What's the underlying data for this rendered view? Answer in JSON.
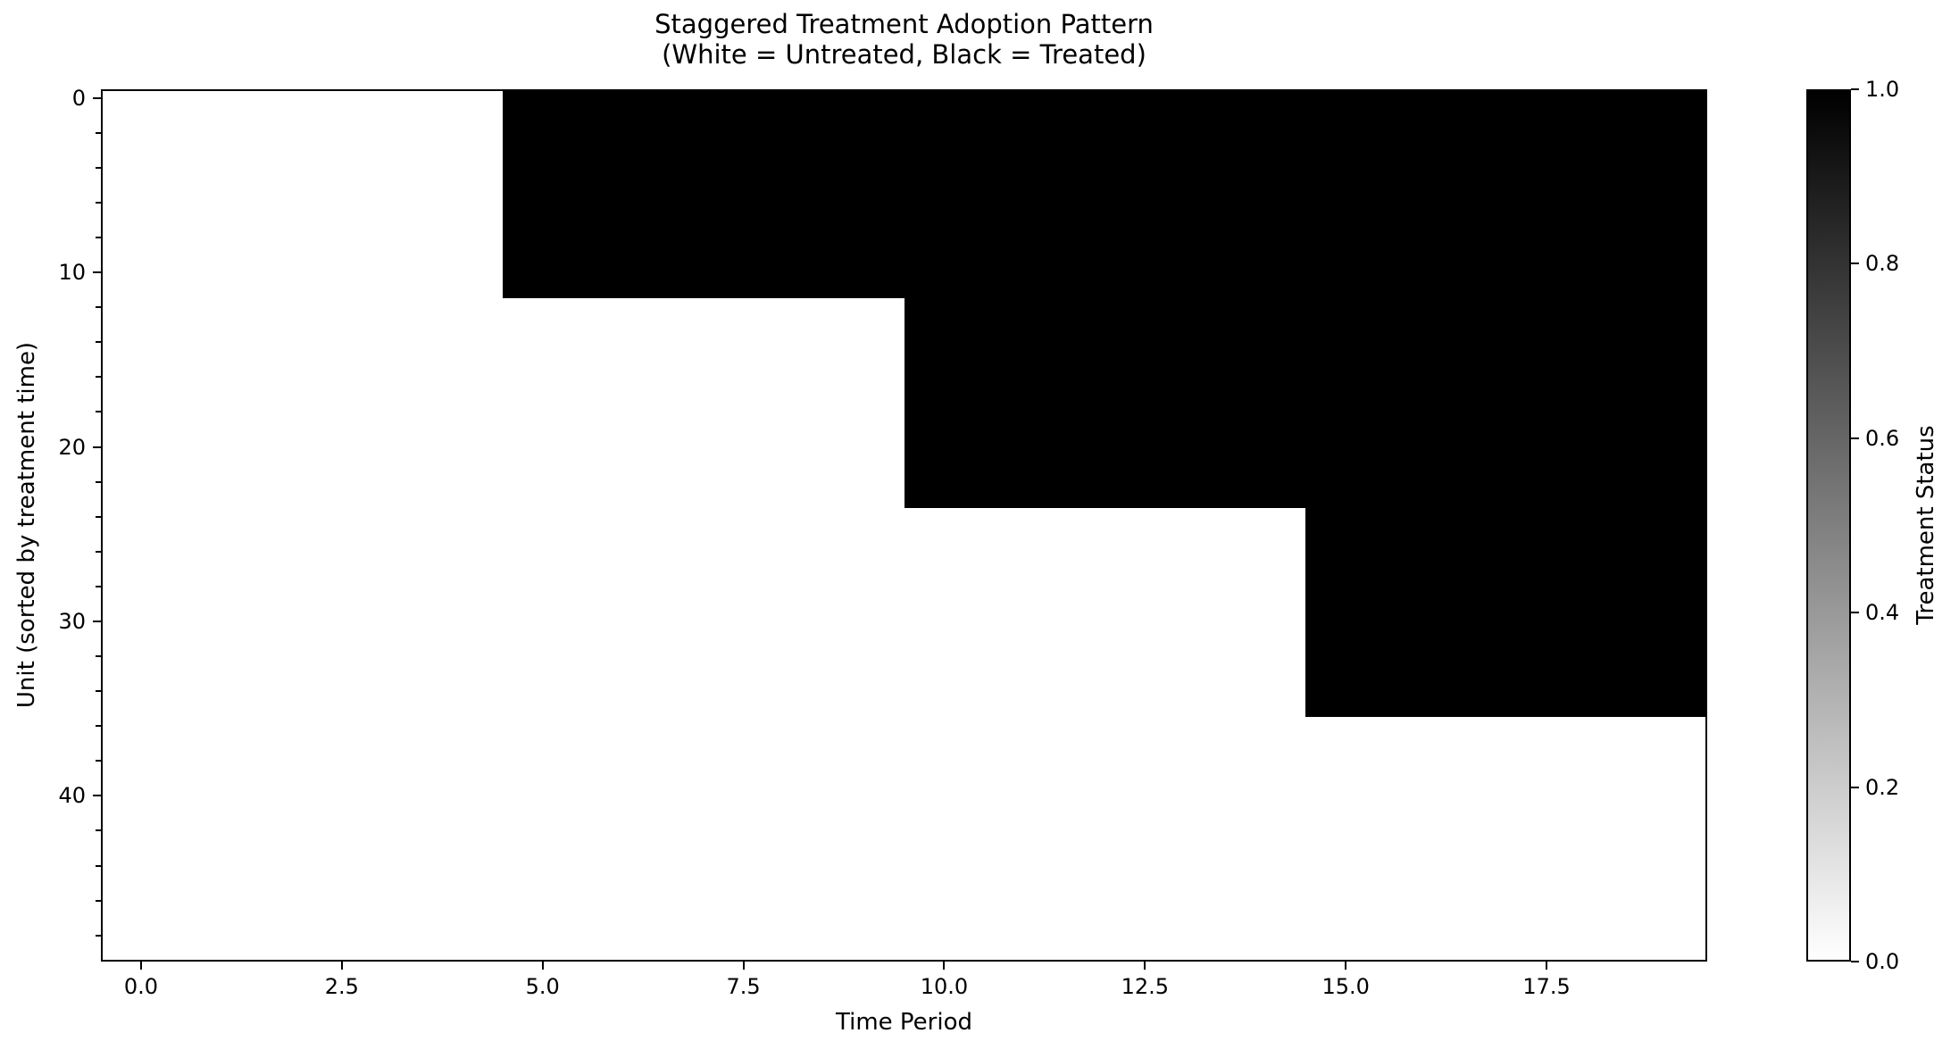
{
  "chart_data": {
    "type": "heatmap",
    "title": "Staggered Treatment Adoption Pattern",
    "subtitle": "(White = Untreated, Black = Treated)",
    "xlabel": "Time Period",
    "ylabel": "Unit (sorted by treatment time)",
    "n_units": 50,
    "n_periods": 20,
    "x_range": [
      -0.5,
      19.5
    ],
    "y_range": [
      -0.5,
      49.5
    ],
    "y_axis_inverted": true,
    "grid": false,
    "x_ticks": [
      {
        "value": 0,
        "label": "0.0"
      },
      {
        "value": 2.5,
        "label": "2.5"
      },
      {
        "value": 5,
        "label": "5.0"
      },
      {
        "value": 7.5,
        "label": "7.5"
      },
      {
        "value": 10,
        "label": "10.0"
      },
      {
        "value": 12.5,
        "label": "12.5"
      },
      {
        "value": 15,
        "label": "15.0"
      },
      {
        "value": 17.5,
        "label": "17.5"
      }
    ],
    "y_ticks": [
      {
        "value": 0,
        "label": "0"
      },
      {
        "value": 10,
        "label": "10"
      },
      {
        "value": 20,
        "label": "20"
      },
      {
        "value": 30,
        "label": "30"
      },
      {
        "value": 40,
        "label": "40"
      }
    ],
    "y_minor_tick_step": 2,
    "value_rule": "cell value = 1 (treated, black) when time period >= adoption_period, else 0 (untreated, white)",
    "treatment_groups": [
      {
        "unit_start": 0,
        "unit_end": 11,
        "adoption_period": 5
      },
      {
        "unit_start": 12,
        "unit_end": 23,
        "adoption_period": 10
      },
      {
        "unit_start": 24,
        "unit_end": 35,
        "adoption_period": 15
      },
      {
        "unit_start": 36,
        "unit_end": 49,
        "adoption_period": null
      }
    ],
    "colors": {
      "treated": "#000000",
      "untreated": "#ffffff",
      "text": "#000000",
      "spine": "#000000"
    },
    "colorbar": {
      "label": "Treatment Status",
      "min": 0.0,
      "max": 1.0,
      "ticks": [
        {
          "value": 1.0,
          "label": "1.0"
        },
        {
          "value": 0.8,
          "label": "0.8"
        },
        {
          "value": 0.6,
          "label": "0.6"
        },
        {
          "value": 0.4,
          "label": "0.4"
        },
        {
          "value": 0.2,
          "label": "0.2"
        },
        {
          "value": 0.0,
          "label": "0.0"
        }
      ]
    }
  }
}
